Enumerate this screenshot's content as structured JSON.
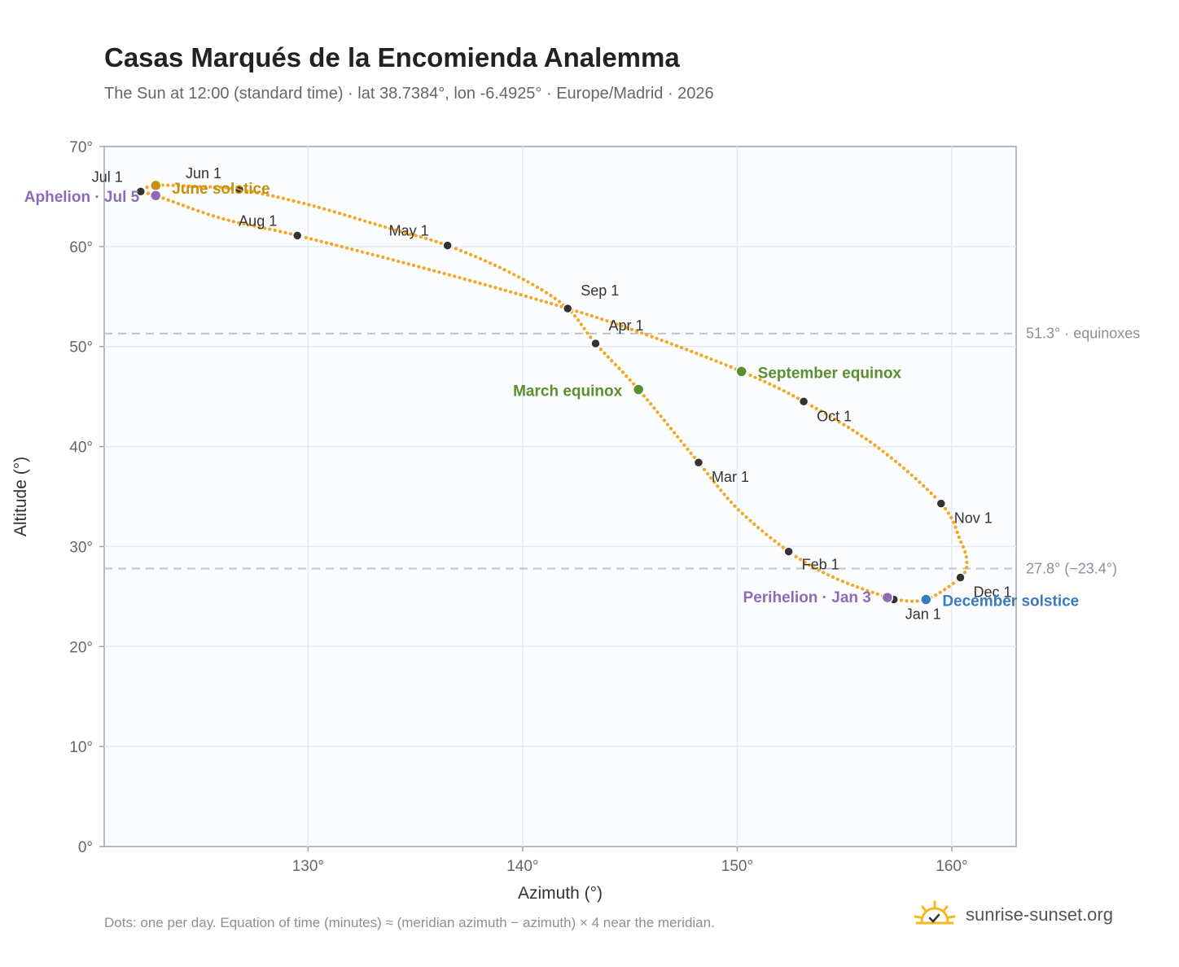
{
  "title": "Casas Marqués de la Encomienda Analemma",
  "subtitle": "The Sun at 12:00 (standard time) · lat 38.7384°, lon -6.4925° · Europe/Madrid · 2026",
  "footnote": "Dots: one per day. Equation of time (minutes) ≈ (meridian azimuth − azimuth) × 4 near the meridian.",
  "brand": {
    "text": "sunrise-sunset.org",
    "icon": "sun-logo-icon"
  },
  "colors": {
    "curve": "#f5a623",
    "month_marker": "#333333",
    "solstice_june": "#c8900f",
    "solstice_december": "#3a7abf",
    "equinox": "#5a8f2e",
    "apsis": "#8e6bb8",
    "reference_line": "#c0c4ca",
    "plot_background": "#fafcfe",
    "grid": "#e6e9ee",
    "axis": "#9aa3b0"
  },
  "chart_data": {
    "type": "scatter",
    "title": "Casas Marqués de la Encomienda Analemma",
    "xlabel": "Azimuth (°)",
    "ylabel": "Altitude (°)",
    "xlim": [
      120.5,
      163
    ],
    "ylim": [
      0,
      70
    ],
    "x_ticks": [
      {
        "value": 130,
        "label": "130°"
      },
      {
        "value": 140,
        "label": "140°"
      },
      {
        "value": 150,
        "label": "150°"
      },
      {
        "value": 160,
        "label": "160°"
      }
    ],
    "y_ticks": [
      {
        "value": 0,
        "label": "0°"
      },
      {
        "value": 10,
        "label": "10°"
      },
      {
        "value": 20,
        "label": "20°"
      },
      {
        "value": 30,
        "label": "30°"
      },
      {
        "value": 40,
        "label": "40°"
      },
      {
        "value": 50,
        "label": "50°"
      },
      {
        "value": 60,
        "label": "60°"
      },
      {
        "value": 70,
        "label": "70°"
      }
    ],
    "grid": true,
    "reference_lines": [
      {
        "y": 51.3,
        "label": "51.3° · equinoxes"
      },
      {
        "y": 27.8,
        "label": "27.8° (−23.4°)"
      }
    ],
    "curve_path": [
      [
        158.8,
        24.7
      ],
      [
        160.4,
        26.9
      ],
      [
        160.7,
        28.5
      ],
      [
        160.4,
        30.6
      ],
      [
        159.5,
        34.3
      ],
      [
        156.5,
        40.0
      ],
      [
        153.1,
        44.5
      ],
      [
        150.2,
        47.5
      ],
      [
        146.0,
        51.0
      ],
      [
        142.1,
        53.8
      ],
      [
        136.0,
        57.5
      ],
      [
        129.5,
        61.1
      ],
      [
        126.0,
        62.8
      ],
      [
        122.9,
        65.1
      ],
      [
        122.2,
        65.5
      ],
      [
        122.9,
        66.1
      ],
      [
        124.8,
        66.0
      ],
      [
        126.8,
        65.7
      ],
      [
        130.0,
        64.2
      ],
      [
        133.5,
        62.0
      ],
      [
        136.5,
        60.1
      ],
      [
        139.6,
        57.2
      ],
      [
        142.0,
        54.0
      ],
      [
        143.4,
        50.3
      ],
      [
        145.4,
        45.7
      ],
      [
        148.2,
        38.4
      ],
      [
        150.0,
        33.8
      ],
      [
        152.4,
        29.5
      ],
      [
        154.5,
        26.9
      ],
      [
        157.0,
        24.9
      ],
      [
        157.3,
        24.7
      ],
      [
        158.8,
        24.7
      ]
    ],
    "month_markers": [
      {
        "label": "Jan 1",
        "x": 157.3,
        "y": 24.7
      },
      {
        "label": "Feb 1",
        "x": 152.4,
        "y": 29.5
      },
      {
        "label": "Mar 1",
        "x": 148.2,
        "y": 38.4
      },
      {
        "label": "Apr 1",
        "x": 143.4,
        "y": 50.3
      },
      {
        "label": "May 1",
        "x": 136.5,
        "y": 60.1
      },
      {
        "label": "Jun 1",
        "x": 126.8,
        "y": 65.7
      },
      {
        "label": "Jul 1",
        "x": 122.2,
        "y": 65.5
      },
      {
        "label": "Aug 1",
        "x": 129.5,
        "y": 61.1
      },
      {
        "label": "Sep 1",
        "x": 142.1,
        "y": 53.8
      },
      {
        "label": "Oct 1",
        "x": 153.1,
        "y": 44.5
      },
      {
        "label": "Nov 1",
        "x": 159.5,
        "y": 34.3
      },
      {
        "label": "Dec 1",
        "x": 160.4,
        "y": 26.9
      }
    ],
    "events": [
      {
        "label": "June solstice",
        "x": 122.9,
        "y": 66.1,
        "kind": "solstice_june"
      },
      {
        "label": "December solstice",
        "x": 158.8,
        "y": 24.7,
        "kind": "solstice_december"
      },
      {
        "label": "March equinox",
        "x": 145.4,
        "y": 45.7,
        "kind": "equinox"
      },
      {
        "label": "September equinox",
        "x": 150.2,
        "y": 47.5,
        "kind": "equinox"
      },
      {
        "label": "Aphelion · Jul 5",
        "x": 122.9,
        "y": 65.1,
        "kind": "apsis"
      },
      {
        "label": "Perihelion · Jan 3",
        "x": 157.0,
        "y": 24.9,
        "kind": "apsis"
      }
    ]
  }
}
